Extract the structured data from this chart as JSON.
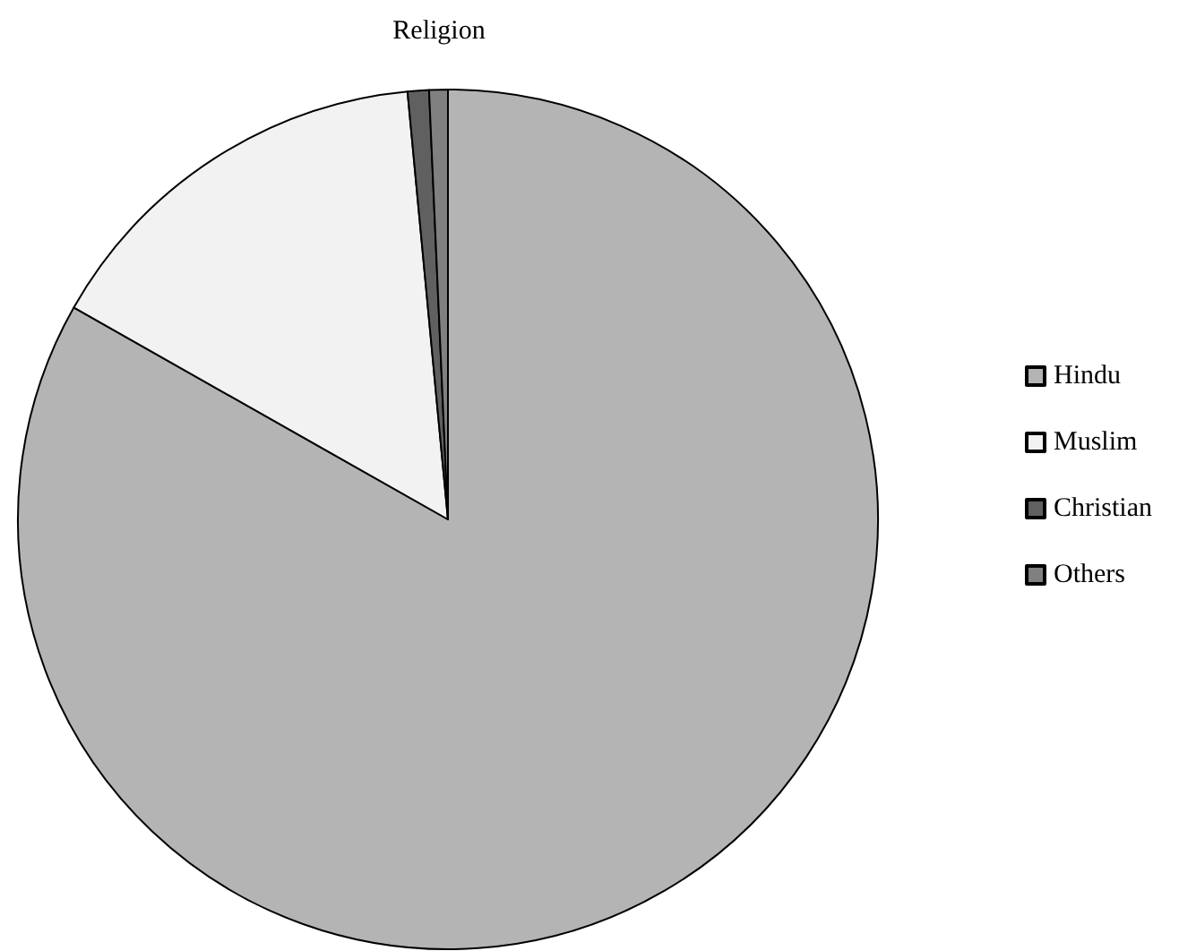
{
  "chart_data": {
    "type": "pie",
    "title": "Religion",
    "categories": [
      "Hindu",
      "Muslim",
      "Christian",
      "Others"
    ],
    "values": [
      83.2,
      15.3,
      0.8,
      0.7
    ],
    "colors": [
      "#b4b4b4",
      "#f2f2f2",
      "#606060",
      "#808080"
    ],
    "legend": "right"
  }
}
